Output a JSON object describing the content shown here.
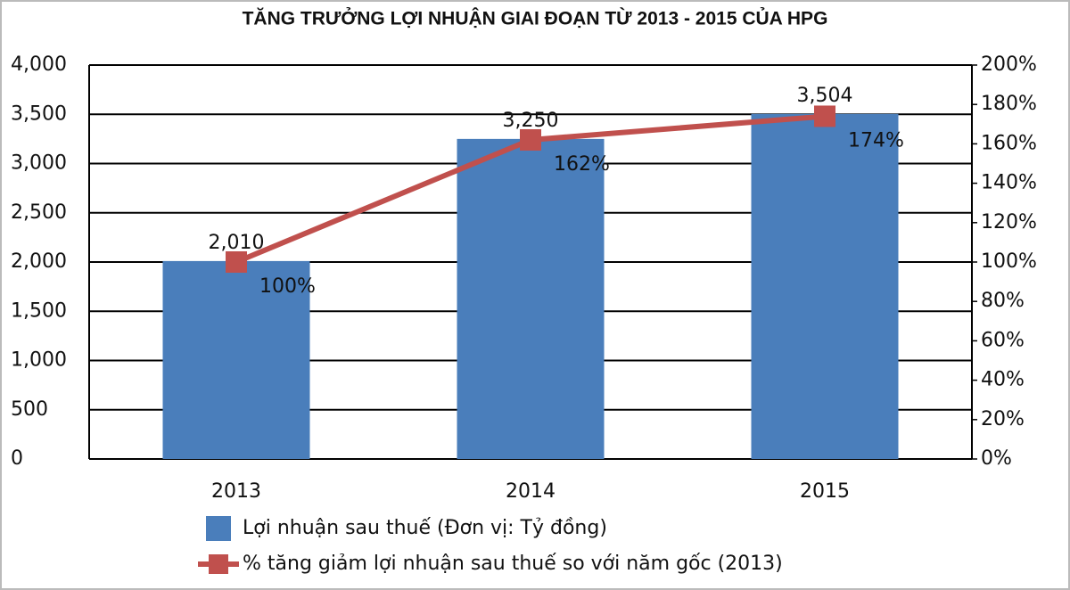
{
  "chart_data": {
    "type": "bar",
    "title": "TĂNG TRƯỞNG LỢI NHUẬN GIAI ĐOẠN TỪ 2013 - 2015 CỦA HPG",
    "categories": [
      "2013",
      "2014",
      "2015"
    ],
    "series": [
      {
        "name": "Lợi nhuận sau thuế (Đơn vị: Tỷ đồng)",
        "type": "bar",
        "color": "#4a7ebb",
        "values": [
          2010,
          3250,
          3504
        ],
        "value_labels": [
          "2,010",
          "3,250",
          "3,504"
        ]
      },
      {
        "name": "% tăng giảm lợi nhuận sau thuế so với năm gốc (2013)",
        "type": "line",
        "axis": "y2",
        "color": "#c0504d",
        "values": [
          100,
          162,
          174
        ],
        "value_labels": [
          "100%",
          "162%",
          "174%"
        ]
      }
    ],
    "ylim": [
      0,
      4000
    ],
    "yticks": [
      0,
      500,
      {
        "value": 1000,
        "label": "1,000"
      },
      {
        "value": 1500,
        "label": "1,500"
      },
      {
        "value": 2000,
        "label": "2,000"
      },
      {
        "value": 2500,
        "label": "2,500"
      },
      {
        "value": 3000,
        "label": "3,000"
      },
      {
        "value": 3500,
        "label": "3,500"
      },
      {
        "value": 4000,
        "label": "4,000"
      }
    ],
    "y2lim": [
      0,
      200
    ],
    "y2ticks": [
      {
        "value": 0,
        "label": "0%"
      },
      {
        "value": 20,
        "label": "20%"
      },
      {
        "value": 40,
        "label": "40%"
      },
      {
        "value": 60,
        "label": "60%"
      },
      {
        "value": 80,
        "label": "80%"
      },
      {
        "value": 100,
        "label": "100%"
      },
      {
        "value": 120,
        "label": "120%"
      },
      {
        "value": 140,
        "label": "140%"
      },
      {
        "value": 160,
        "label": "160%"
      },
      {
        "value": 180,
        "label": "180%"
      },
      {
        "value": 200,
        "label": "200%"
      }
    ],
    "grid": true
  }
}
